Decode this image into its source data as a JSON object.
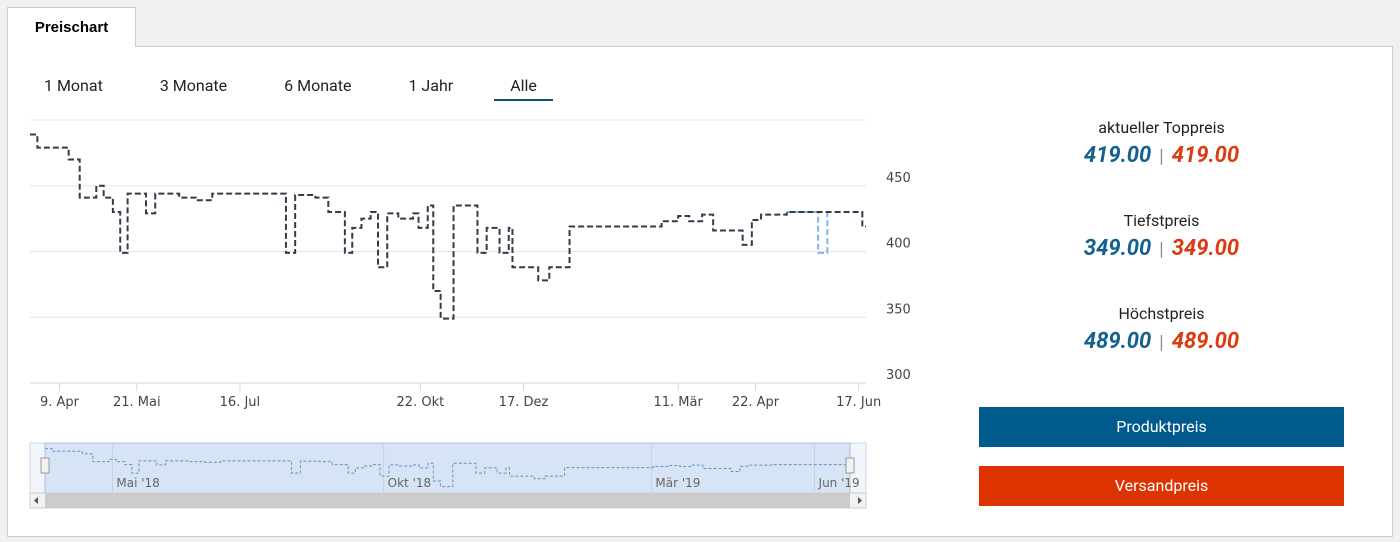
{
  "tab": "Preischart",
  "ranges": [
    "1 Monat",
    "3 Monate",
    "6 Monate",
    "1 Jahr",
    "Alle"
  ],
  "active_range": 4,
  "chart_data": {
    "type": "line",
    "step": true,
    "x": [
      "2018-03-24",
      "2018-03-28",
      "2018-04-14",
      "2018-04-20",
      "2018-04-29",
      "2018-05-03",
      "2018-05-08",
      "2018-05-12",
      "2018-05-16",
      "2018-05-26",
      "2018-05-31",
      "2018-06-13",
      "2018-06-22",
      "2018-07-01",
      "2018-08-10",
      "2018-08-15",
      "2018-08-26",
      "2018-09-02",
      "2018-09-11",
      "2018-09-15",
      "2018-09-20",
      "2018-09-25",
      "2018-09-29",
      "2018-10-04",
      "2018-10-10",
      "2018-10-18",
      "2018-10-21",
      "2018-10-26",
      "2018-10-29",
      "2018-11-02",
      "2018-11-09",
      "2018-11-22",
      "2018-11-27",
      "2018-12-04",
      "2018-12-09",
      "2018-12-11",
      "2018-12-25",
      "2018-12-31",
      "2019-01-11",
      "2019-03-02",
      "2019-03-11",
      "2019-03-17",
      "2019-03-24",
      "2019-03-30",
      "2019-04-15",
      "2019-04-20",
      "2019-04-25",
      "2019-05-09",
      "2019-05-26",
      "2019-05-31",
      "2019-06-19"
    ],
    "series": [
      {
        "name": "Produktpreis",
        "color": "#343b4a",
        "values": [
          489,
          479,
          470,
          441,
          450,
          441,
          430,
          399,
          444,
          429,
          444,
          441,
          439,
          444,
          399,
          443,
          441,
          430,
          399,
          418,
          425,
          430,
          388,
          429,
          425,
          429,
          418,
          435,
          370,
          349,
          435,
          399,
          418,
          399,
          418,
          388,
          378,
          388,
          419,
          423,
          427,
          423,
          428,
          416,
          405,
          424,
          428,
          430,
          430,
          430,
          419
        ]
      },
      {
        "name": "Versandpreis",
        "color": "#7fb6e6",
        "values": [
          null,
          null,
          null,
          null,
          null,
          null,
          null,
          null,
          null,
          null,
          null,
          null,
          null,
          null,
          null,
          null,
          null,
          null,
          null,
          null,
          null,
          null,
          null,
          null,
          null,
          null,
          null,
          null,
          null,
          null,
          null,
          null,
          null,
          null,
          null,
          null,
          null,
          null,
          null,
          null,
          null,
          null,
          null,
          null,
          null,
          null,
          null,
          430,
          399,
          430,
          null
        ]
      }
    ],
    "xlim": [
      "2018-03-24",
      "2019-06-21"
    ],
    "xticks": [
      {
        "value": "2018-04-09",
        "label": "9. Apr"
      },
      {
        "value": "2018-05-21",
        "label": "21. Mai"
      },
      {
        "value": "2018-07-16",
        "label": "16. Jul"
      },
      {
        "value": "2018-10-22",
        "label": "22. Okt"
      },
      {
        "value": "2018-12-17",
        "label": "17. Dez"
      },
      {
        "value": "2019-03-11",
        "label": "11. Mär"
      },
      {
        "value": "2019-04-22",
        "label": "22. Apr"
      },
      {
        "value": "2019-06-17",
        "label": "17. Jun"
      }
    ],
    "navigator_xticks": [
      {
        "value": "2018-05-01",
        "label": "Mai '18"
      },
      {
        "value": "2018-10-01",
        "label": "Okt '18"
      },
      {
        "value": "2019-03-01",
        "label": "Mär '19"
      },
      {
        "value": "2019-06-01",
        "label": "Jun '19"
      }
    ],
    "ylim": [
      300,
      500
    ],
    "yticks": [
      300,
      350,
      400,
      450
    ],
    "grid": true
  },
  "prices": [
    {
      "label": "aktueller Toppreis",
      "product": "419.00",
      "shipping": "419.00"
    },
    {
      "label": "Tiefstpreis",
      "product": "349.00",
      "shipping": "349.00"
    },
    {
      "label": "Höchstpreis",
      "product": "489.00",
      "shipping": "489.00"
    }
  ]
}
